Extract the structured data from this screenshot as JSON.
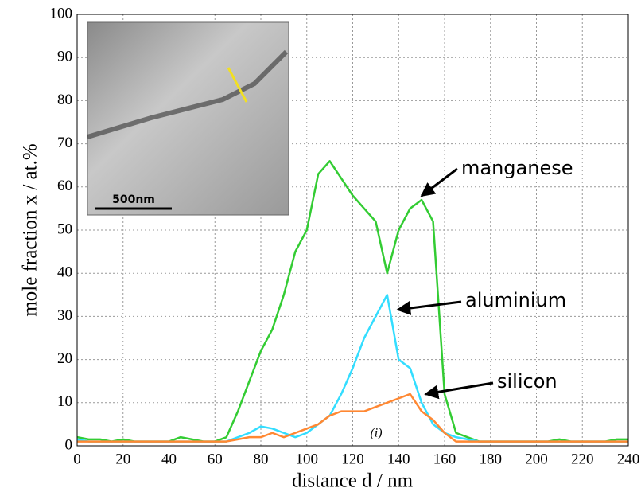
{
  "chart_data": {
    "type": "line",
    "x_label": "distance d / nm",
    "y_label": "mole fraction x / at.%",
    "panel_label": "(i)",
    "inset_scale_label": "500nm",
    "xlim": [
      0,
      240
    ],
    "ylim": [
      0,
      100
    ],
    "xticks": [
      0,
      20,
      40,
      60,
      80,
      100,
      120,
      140,
      160,
      180,
      200,
      220,
      240
    ],
    "yticks": [
      0,
      10,
      20,
      30,
      40,
      50,
      60,
      70,
      80,
      90,
      100
    ],
    "grid": true,
    "x": [
      0,
      5,
      10,
      15,
      20,
      25,
      30,
      35,
      40,
      45,
      50,
      55,
      60,
      65,
      70,
      75,
      80,
      85,
      90,
      95,
      100,
      105,
      110,
      115,
      120,
      125,
      130,
      135,
      140,
      145,
      150,
      155,
      160,
      165,
      170,
      175,
      180,
      185,
      190,
      195,
      200,
      205,
      210,
      215,
      220,
      225,
      230,
      235,
      240
    ],
    "series": [
      {
        "name": "manganese",
        "color": "#33cc33",
        "values": [
          2,
          1.5,
          1.5,
          1,
          1.5,
          1,
          1,
          1,
          1,
          2,
          1.5,
          1,
          1,
          2,
          8,
          15,
          22,
          27,
          35,
          45,
          50,
          63,
          66,
          62,
          58,
          55,
          52,
          40,
          50,
          55,
          57,
          52,
          12,
          3,
          2,
          1,
          1,
          1,
          1,
          1,
          1,
          1,
          1.5,
          1,
          1,
          1,
          1,
          1.5,
          1.5
        ]
      },
      {
        "name": "aluminium",
        "color": "#33ddff",
        "values": [
          1.5,
          1,
          1,
          1,
          1,
          1,
          1,
          1,
          1,
          1,
          1,
          1,
          1,
          1,
          2,
          3,
          4.5,
          4,
          3,
          2,
          3,
          5,
          7,
          12,
          18,
          25,
          30,
          35,
          20,
          18,
          10,
          5,
          3,
          2,
          1.5,
          1,
          1,
          1,
          1,
          1,
          1,
          1,
          1,
          1,
          1,
          1,
          1,
          1,
          1
        ]
      },
      {
        "name": "silicon",
        "color": "#ff8833",
        "values": [
          1,
          1,
          1,
          1,
          1,
          1,
          1,
          1,
          1,
          1,
          1,
          1,
          1,
          1,
          1.5,
          2,
          2,
          3,
          2,
          3,
          4,
          5,
          7,
          8,
          8,
          8,
          9,
          10,
          11,
          12,
          8,
          6,
          3,
          1,
          1,
          1,
          1,
          1,
          1,
          1,
          1,
          1,
          1,
          1,
          1,
          1,
          1,
          1,
          1
        ]
      }
    ]
  }
}
